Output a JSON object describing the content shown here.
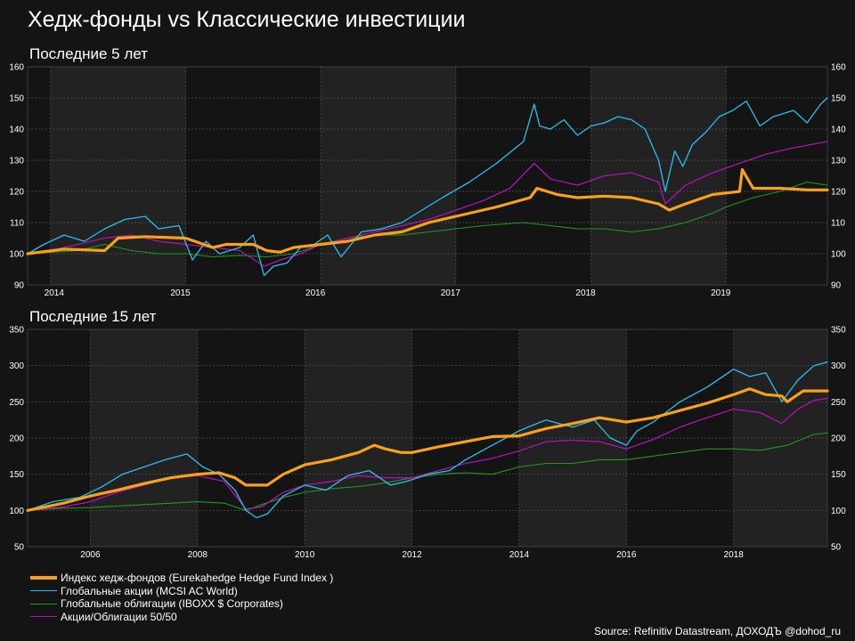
{
  "title": "Хедж-фонды vs Классические инвестиции",
  "source": "Source: Refinitiv Datastream, ДОХОДЪ @dohod_ru",
  "colors": {
    "background": "#141414",
    "band": "#222222",
    "grid": "#555555",
    "hedge": "#f9a11b",
    "equity": "#29c0ee",
    "bonds": "#1f9a1f",
    "mix": "#b012b0"
  },
  "legend": [
    {
      "key": "hedge",
      "label": "Индекс хедж-фондов (Eurekahedge Hedge Fund Index )"
    },
    {
      "key": "equity",
      "label": "Глобальные акции (MCSI AC World)"
    },
    {
      "key": "bonds",
      "label": "Глобальные облигации (IBOXX $ Corporates)"
    },
    {
      "key": "mix",
      "label": "Акции/Облигации 50/50"
    }
  ],
  "chart_data": [
    {
      "type": "line",
      "title": "Последние 5 лет",
      "grid": true,
      "x_range": [
        2013.83,
        2019.75
      ],
      "ylim": [
        90,
        160
      ],
      "yticks": [
        90,
        100,
        110,
        120,
        130,
        140,
        150,
        160
      ],
      "xtick_labels": [
        "2014",
        "2015",
        "2016",
        "2017",
        "2018",
        "2019"
      ],
      "xtick_positions": [
        2014.0,
        2015.0,
        2016.0,
        2017.0,
        2018.0,
        2019.0
      ],
      "series": [
        {
          "key": "hedge",
          "x": [
            2013.83,
            2014.1,
            2014.4,
            2014.5,
            2014.7,
            2015.0,
            2015.2,
            2015.3,
            2015.5,
            2015.6,
            2015.7,
            2015.8,
            2016.0,
            2016.2,
            2016.4,
            2016.6,
            2016.8,
            2017.0,
            2017.3,
            2017.55,
            2017.6,
            2017.75,
            2017.9,
            2018.1,
            2018.3,
            2018.5,
            2018.58,
            2018.7,
            2018.9,
            2019.0,
            2019.1,
            2019.12,
            2019.2,
            2019.4,
            2019.6,
            2019.75
          ],
          "y": [
            100,
            101.5,
            101,
            105,
            105.5,
            105,
            102,
            103,
            103,
            101,
            100.5,
            102,
            103,
            104,
            106,
            107,
            110,
            112,
            115,
            118,
            121,
            119,
            118,
            118.5,
            118,
            116,
            114,
            116,
            119,
            119.5,
            120,
            127,
            121,
            121,
            120.5,
            120.5
          ]
        },
        {
          "key": "equity",
          "x": [
            2013.83,
            2013.95,
            2014.1,
            2014.25,
            2014.4,
            2014.55,
            2014.7,
            2014.8,
            2014.95,
            2015.05,
            2015.15,
            2015.25,
            2015.4,
            2015.5,
            2015.58,
            2015.65,
            2015.75,
            2015.85,
            2015.95,
            2016.05,
            2016.15,
            2016.3,
            2016.45,
            2016.6,
            2016.75,
            2016.9,
            2017.1,
            2017.3,
            2017.5,
            2017.58,
            2017.62,
            2017.7,
            2017.8,
            2017.9,
            2018.0,
            2018.1,
            2018.2,
            2018.3,
            2018.4,
            2018.5,
            2018.55,
            2018.62,
            2018.68,
            2018.75,
            2018.85,
            2018.95,
            2019.05,
            2019.15,
            2019.25,
            2019.35,
            2019.5,
            2019.6,
            2019.7,
            2019.75
          ],
          "y": [
            100,
            103,
            106,
            104,
            108,
            111,
            112,
            108,
            109,
            98,
            104,
            100,
            102,
            106,
            93,
            96,
            97,
            102,
            103,
            106,
            99,
            107,
            108,
            110,
            114,
            118,
            123,
            129,
            136,
            148,
            141,
            140,
            143,
            138,
            141,
            142,
            144,
            143,
            140,
            130,
            120,
            133,
            128,
            135,
            139,
            144,
            146,
            149,
            141,
            144,
            146,
            142,
            148,
            150
          ]
        },
        {
          "key": "bonds",
          "x": [
            2013.83,
            2014.0,
            2014.2,
            2014.4,
            2014.6,
            2014.8,
            2015.0,
            2015.2,
            2015.4,
            2015.6,
            2015.8,
            2016.0,
            2016.2,
            2016.4,
            2016.6,
            2016.8,
            2017.0,
            2017.2,
            2017.5,
            2017.7,
            2017.9,
            2018.1,
            2018.3,
            2018.5,
            2018.7,
            2018.9,
            2019.0,
            2019.2,
            2019.4,
            2019.6,
            2019.75
          ],
          "y": [
            100,
            100.5,
            101,
            103,
            101,
            100,
            100,
            99,
            99.5,
            99,
            100,
            103,
            105,
            106,
            106,
            107,
            108,
            109,
            110,
            109,
            108,
            108,
            107,
            108,
            110,
            113,
            115,
            118,
            120,
            123,
            122
          ]
        },
        {
          "key": "mix",
          "x": [
            2013.83,
            2014.0,
            2014.2,
            2014.4,
            2014.6,
            2014.8,
            2015.0,
            2015.2,
            2015.4,
            2015.58,
            2015.7,
            2015.85,
            2016.0,
            2016.2,
            2016.4,
            2016.6,
            2016.8,
            2017.0,
            2017.2,
            2017.4,
            2017.58,
            2017.7,
            2017.9,
            2018.1,
            2018.3,
            2018.5,
            2018.55,
            2018.7,
            2018.9,
            2019.1,
            2019.3,
            2019.5,
            2019.75
          ],
          "y": [
            100,
            101,
            103,
            105,
            106,
            104,
            103,
            102,
            101,
            96,
            98,
            100,
            103,
            105,
            107,
            109,
            111,
            114,
            117,
            121,
            129,
            124,
            122,
            125,
            126,
            123,
            116,
            122,
            126,
            129,
            132,
            134,
            136
          ]
        }
      ]
    },
    {
      "type": "line",
      "title": "Последние 15 лет",
      "grid": true,
      "x_range": [
        2004.83,
        2019.75
      ],
      "ylim": [
        50,
        350
      ],
      "yticks": [
        50,
        100,
        150,
        200,
        250,
        300,
        350
      ],
      "xtick_labels": [
        "2006",
        "2008",
        "2010",
        "2012",
        "2014",
        "2016",
        "2018"
      ],
      "xtick_positions": [
        2006,
        2008,
        2010,
        2012,
        2014,
        2016,
        2018
      ],
      "series": [
        {
          "key": "hedge",
          "x": [
            2004.83,
            2005.5,
            2006.0,
            2006.5,
            2007.0,
            2007.5,
            2008.0,
            2008.4,
            2008.7,
            2008.9,
            2009.3,
            2009.6,
            2010.0,
            2010.5,
            2011.0,
            2011.3,
            2011.5,
            2011.8,
            2012.0,
            2012.5,
            2013.0,
            2013.5,
            2014.0,
            2014.5,
            2015.0,
            2015.5,
            2016.0,
            2016.5,
            2017.0,
            2017.5,
            2018.0,
            2018.3,
            2018.6,
            2018.9,
            2019.0,
            2019.3,
            2019.75
          ],
          "y": [
            100,
            110,
            120,
            128,
            137,
            145,
            150,
            152,
            145,
            135,
            135,
            150,
            163,
            170,
            180,
            190,
            185,
            180,
            180,
            188,
            195,
            202,
            203,
            213,
            220,
            228,
            222,
            228,
            238,
            248,
            260,
            268,
            260,
            258,
            250,
            265,
            265
          ]
        },
        {
          "key": "equity",
          "x": [
            2004.83,
            2005.3,
            2005.8,
            2006.2,
            2006.6,
            2007.0,
            2007.4,
            2007.8,
            2008.1,
            2008.4,
            2008.7,
            2008.9,
            2009.1,
            2009.3,
            2009.6,
            2010.0,
            2010.4,
            2010.8,
            2011.2,
            2011.6,
            2011.9,
            2012.3,
            2012.7,
            2013.0,
            2013.5,
            2014.0,
            2014.5,
            2015.0,
            2015.4,
            2015.7,
            2016.0,
            2016.2,
            2016.5,
            2017.0,
            2017.5,
            2018.0,
            2018.3,
            2018.6,
            2018.9,
            2019.2,
            2019.5,
            2019.75
          ],
          "y": [
            100,
            112,
            118,
            132,
            150,
            160,
            170,
            178,
            160,
            150,
            128,
            100,
            90,
            95,
            120,
            135,
            128,
            148,
            155,
            135,
            140,
            150,
            155,
            170,
            190,
            210,
            225,
            215,
            225,
            200,
            190,
            210,
            222,
            250,
            270,
            295,
            285,
            290,
            250,
            280,
            300,
            305
          ]
        },
        {
          "key": "bonds",
          "x": [
            2004.83,
            2005.5,
            2006.0,
            2006.5,
            2007.0,
            2007.5,
            2008.0,
            2008.5,
            2008.9,
            2009.2,
            2009.6,
            2010.0,
            2010.5,
            2011.0,
            2011.5,
            2012.0,
            2012.5,
            2013.0,
            2013.5,
            2014.0,
            2014.5,
            2015.0,
            2015.5,
            2016.0,
            2016.5,
            2017.0,
            2017.5,
            2018.0,
            2018.5,
            2019.0,
            2019.5,
            2019.75
          ],
          "y": [
            100,
            103,
            104,
            106,
            108,
            110,
            112,
            110,
            100,
            108,
            118,
            125,
            130,
            133,
            138,
            145,
            150,
            152,
            150,
            160,
            165,
            165,
            170,
            170,
            175,
            180,
            185,
            185,
            183,
            190,
            205,
            207
          ]
        },
        {
          "key": "mix",
          "x": [
            2004.83,
            2005.5,
            2006.0,
            2006.5,
            2007.0,
            2007.5,
            2008.0,
            2008.5,
            2008.9,
            2009.2,
            2009.6,
            2010.0,
            2010.5,
            2011.0,
            2011.5,
            2012.0,
            2012.5,
            2013.0,
            2013.5,
            2014.0,
            2014.5,
            2015.0,
            2015.5,
            2016.0,
            2016.5,
            2017.0,
            2017.5,
            2018.0,
            2018.5,
            2018.9,
            2019.2,
            2019.5,
            2019.75
          ],
          "y": [
            100,
            105,
            112,
            125,
            135,
            145,
            148,
            140,
            102,
            105,
            125,
            135,
            140,
            148,
            145,
            145,
            155,
            165,
            172,
            182,
            195,
            197,
            195,
            185,
            198,
            215,
            228,
            240,
            235,
            220,
            240,
            252,
            255
          ]
        }
      ]
    }
  ]
}
